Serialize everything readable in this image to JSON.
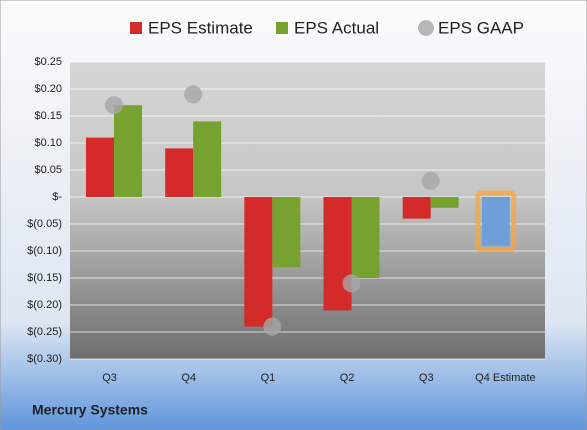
{
  "chart_data": {
    "type": "bar",
    "categories": [
      "Q3",
      "Q4",
      "Q1",
      "Q2",
      "Q3",
      "Q4 Estimate"
    ],
    "series": [
      {
        "name": "EPS Estimate",
        "color": "#d42a2a",
        "colors": [
          "#d42a2a",
          "#d42a2a",
          "#d42a2a",
          "#d42a2a",
          "#d42a2a",
          "#6f9fd8"
        ],
        "values": [
          0.11,
          0.09,
          -0.24,
          -0.21,
          -0.04,
          -0.09
        ]
      },
      {
        "name": "EPS Actual",
        "color": "#78a22f",
        "values": [
          0.17,
          0.14,
          -0.13,
          -0.15,
          -0.02,
          null
        ]
      },
      {
        "name": "EPS GAAP",
        "color": "#a6a6a6",
        "marker": "circle",
        "values": [
          0.17,
          0.19,
          -0.24,
          -0.16,
          0.03,
          null
        ]
      }
    ],
    "ylim": [
      -0.3,
      0.25
    ],
    "yticks": [
      {
        "value": 0.25,
        "label": "$0.25"
      },
      {
        "value": 0.2,
        "label": "$0.20"
      },
      {
        "value": 0.15,
        "label": "$0.15"
      },
      {
        "value": 0.1,
        "label": "$0.10"
      },
      {
        "value": 0.05,
        "label": "$0.05"
      },
      {
        "value": 0,
        "label": "$-"
      },
      {
        "value": -0.05,
        "label": "$(0.05)"
      },
      {
        "value": -0.1,
        "label": "$(0.10)"
      },
      {
        "value": -0.15,
        "label": "$(0.15)"
      },
      {
        "value": -0.2,
        "label": "$(0.20)"
      },
      {
        "value": -0.25,
        "label": "$(0.25)"
      },
      {
        "value": -0.3,
        "label": "$(0.30)"
      }
    ],
    "grid": true,
    "footer": "Mercury Systems"
  }
}
